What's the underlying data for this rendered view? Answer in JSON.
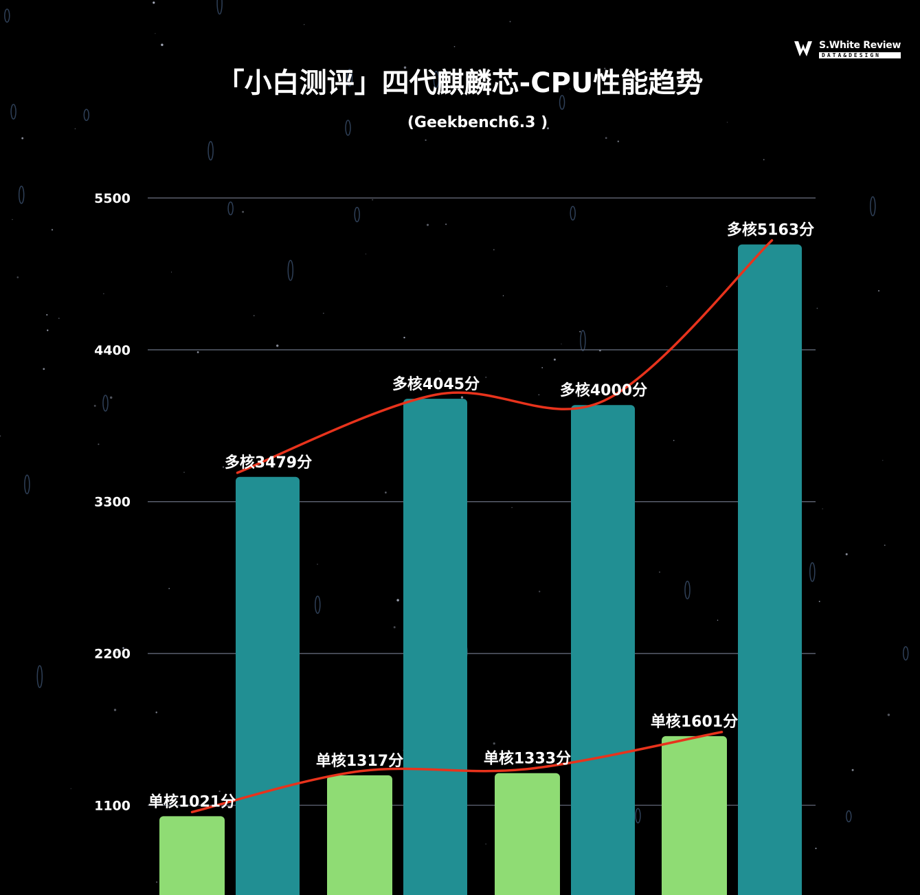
{
  "header": {
    "title": "「小白测评」四代麒麟芯-CPU性能趋势",
    "subtitle": "(Geekbench6.3 )"
  },
  "brand": {
    "logo_icon": "ws-logo-icon",
    "name": "S.White Review",
    "tagline": "DATA&DESIGN"
  },
  "colors": {
    "background": "#000000",
    "single_core": "#8fdc74",
    "multi_core": "#218f93",
    "trend_line": "#e8331c",
    "grid": "#5a5f6e"
  },
  "chart_data": {
    "type": "bar",
    "title": "「小白测评」四代麒麟芯-CPU性能趋势",
    "subtitle": "(Geekbench6.3 )",
    "categories": [
      "",
      "",
      "",
      ""
    ],
    "y_ticks": [
      1100,
      2200,
      3300,
      4400,
      5500
    ],
    "y_tick_labels": [
      "1100",
      "2200",
      "3300",
      "4400",
      "5500"
    ],
    "ylim": [
      450,
      5500
    ],
    "grid": true,
    "series": [
      {
        "key": "single",
        "values": [
          1021,
          1317,
          1333,
          1601
        ],
        "labels": [
          "单核1021分",
          "单核1317分",
          "单核1333分",
          "单核1601分"
        ],
        "color": "#8fdc74"
      },
      {
        "key": "multi",
        "values": [
          3479,
          4045,
          4000,
          5163
        ],
        "labels": [
          "多核3479分",
          "多核4045分",
          "多核4000分",
          "多核5163分"
        ],
        "color": "#218f93"
      }
    ],
    "trend_lines": true
  }
}
